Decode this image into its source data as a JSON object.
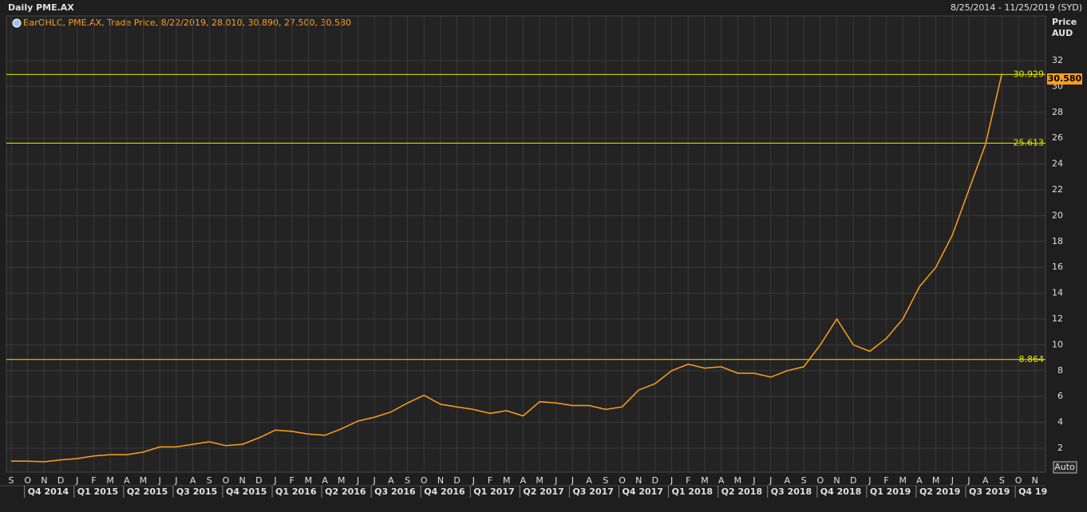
{
  "chart_data": {
    "type": "line",
    "title": "Daily PME.AX",
    "date_range": "8/25/2014 - 11/25/2019 (SYD)",
    "legend_text": "BarOHLC, PME.AX, Trade Price, 8/22/2019, 28.010, 30.890, 27.500, 30.580",
    "y_label": "Price",
    "y_unit": "AUD",
    "button": "Auto",
    "color": "#ff9f1a",
    "categories": [
      "S",
      "O",
      "N",
      "D",
      "J",
      "F",
      "M",
      "A",
      "M",
      "J",
      "J",
      "A",
      "S",
      "O",
      "N",
      "D",
      "J",
      "F",
      "M",
      "A",
      "M",
      "J",
      "J",
      "A",
      "S",
      "O",
      "N",
      "D",
      "J",
      "F",
      "M",
      "A",
      "M",
      "J",
      "J",
      "A",
      "S",
      "O",
      "N",
      "D",
      "J",
      "F",
      "M",
      "A",
      "M",
      "J",
      "J",
      "A",
      "S",
      "O",
      "N",
      "D",
      "J",
      "F",
      "M",
      "A",
      "M",
      "J",
      "J",
      "A",
      "S",
      "O",
      "N"
    ],
    "quarters": [
      "Q4 2014",
      "Q1 2015",
      "Q2 2015",
      "Q3 2015",
      "Q4 2015",
      "Q1 2016",
      "Q2 2016",
      "Q3 2016",
      "Q4 2016",
      "Q1 2017",
      "Q2 2017",
      "Q3 2017",
      "Q4 2017",
      "Q1 2018",
      "Q2 2018",
      "Q3 2018",
      "Q4 2018",
      "Q1 2019",
      "Q2 2019",
      "Q3 2019",
      "Q4 19"
    ],
    "values": [
      1.0,
      1.0,
      0.95,
      1.1,
      1.2,
      1.4,
      1.5,
      1.5,
      1.7,
      2.1,
      2.1,
      2.3,
      2.5,
      2.2,
      2.3,
      2.8,
      3.4,
      3.3,
      3.1,
      3.0,
      3.5,
      4.1,
      4.4,
      4.8,
      5.5,
      6.1,
      5.4,
      5.2,
      5.0,
      4.7,
      4.9,
      4.5,
      5.6,
      5.5,
      5.3,
      5.3,
      5.0,
      5.2,
      6.5,
      7.0,
      8.0,
      8.5,
      8.2,
      8.3,
      7.8,
      7.8,
      7.5,
      8.0,
      8.3,
      10.0,
      12.0,
      10.0,
      9.5,
      10.5,
      12.0,
      14.5,
      16.0,
      18.5,
      22.0,
      25.5,
      31.0,
      null,
      null
    ],
    "ylim": [
      0,
      36
    ],
    "yticks": [
      2,
      4,
      6,
      8,
      10,
      12,
      14,
      16,
      18,
      20,
      22,
      24,
      26,
      28,
      30,
      32
    ],
    "hlines": [
      30.929,
      25.613,
      8.864
    ],
    "hline_color": "#e6e600",
    "last_price": {
      "value": 30.58,
      "label": "30.580"
    },
    "grid": true
  }
}
